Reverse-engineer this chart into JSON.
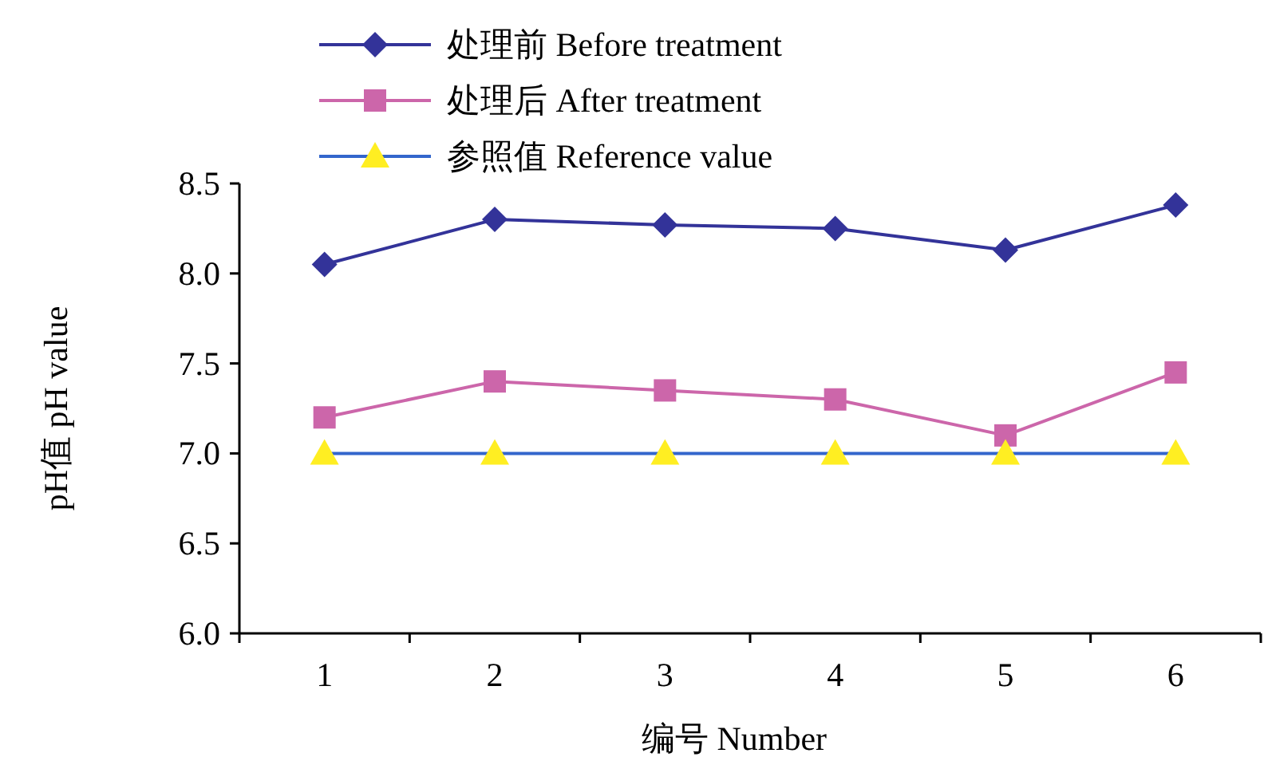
{
  "chart_data": {
    "type": "line",
    "xlabel": "编号 Number",
    "ylabel": "pH值 pH value",
    "categories": [
      "1",
      "2",
      "3",
      "4",
      "5",
      "6"
    ],
    "series": [
      {
        "name": "处理前 Before treatment",
        "color": "#333399",
        "marker": "diamond",
        "values": [
          8.05,
          8.3,
          8.27,
          8.25,
          8.13,
          8.38
        ]
      },
      {
        "name": "处理后 After treatment",
        "color": "#cc66aa",
        "marker": "square",
        "values": [
          7.2,
          7.4,
          7.35,
          7.3,
          7.1,
          7.45
        ]
      },
      {
        "name": "参照值 Reference value",
        "color": "#3366cc",
        "marker": "triangle",
        "colors": [
          "#ffee22",
          "#ffee22",
          "#ffee22",
          "#ffee22",
          "#ffee22",
          "#ffee22"
        ],
        "values": [
          7.0,
          7.0,
          7.0,
          7.0,
          7.0,
          7.0
        ]
      }
    ],
    "ylim": [
      6.0,
      8.5
    ],
    "yticks": [
      {
        "value": 6.0,
        "label": "6.0"
      },
      6.5,
      {
        "value": 7.0,
        "label": "7.0"
      },
      7.5,
      {
        "value": 8.0,
        "label": "8.0"
      },
      8.5
    ],
    "grid": false,
    "legend": "top",
    "line_style": "solid"
  }
}
